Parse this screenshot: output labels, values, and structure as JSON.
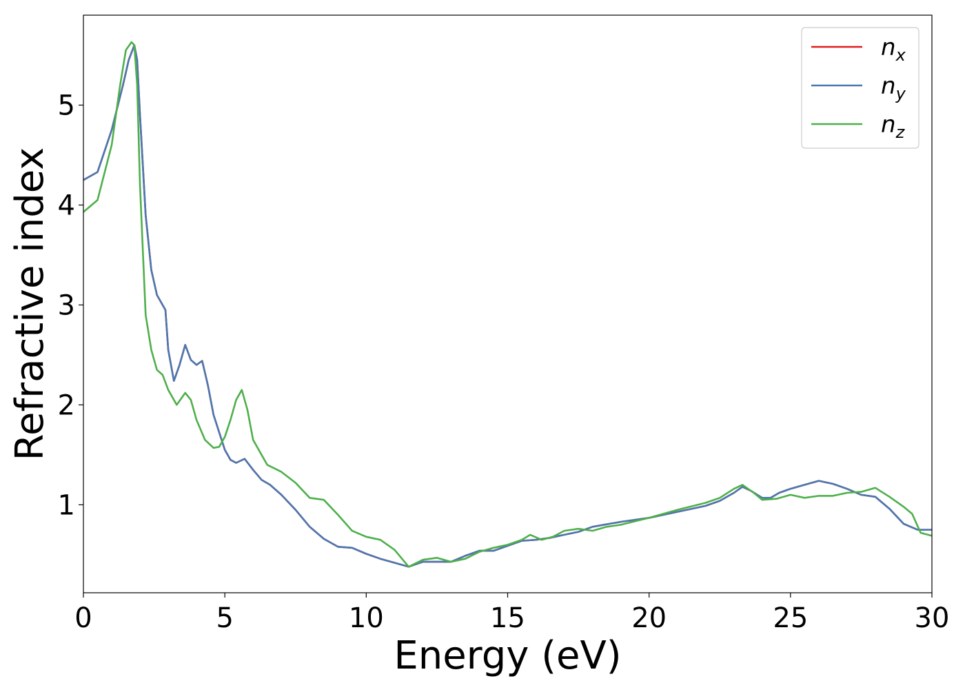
{
  "chart_data": {
    "type": "line",
    "xlabel": "Energy (eV)",
    "ylabel": "Refractive index",
    "xlim": [
      0,
      30
    ],
    "ylim": [
      0.12,
      5.9
    ],
    "xticks": [
      0,
      5,
      10,
      15,
      20,
      25,
      30
    ],
    "yticks": [
      1,
      2,
      3,
      4,
      5
    ],
    "grid": false,
    "legend_position": "top-right",
    "series": [
      {
        "name": "n_x",
        "label_base": "n",
        "label_sub": "x",
        "color": "#e31a1c",
        "x": [
          0,
          0.5,
          1.0,
          1.4,
          1.6,
          1.8,
          1.9,
          2.0,
          2.2,
          2.4,
          2.6,
          2.9,
          3.0,
          3.2,
          3.4,
          3.6,
          3.8,
          4.0,
          4.2,
          4.4,
          4.6,
          5.0,
          5.2,
          5.4,
          5.7,
          6.0,
          6.3,
          6.6,
          7.0,
          7.5,
          8.0,
          8.5,
          9.0,
          9.5,
          10.0,
          10.5,
          11.0,
          11.5,
          12.0,
          12.5,
          13.0,
          13.5,
          14.0,
          14.5,
          15.0,
          15.5,
          16.0,
          16.5,
          17.0,
          17.5,
          18.0,
          19.0,
          20.0,
          21.0,
          22.0,
          22.5,
          23.0,
          23.3,
          23.6,
          24.0,
          24.3,
          24.6,
          25.0,
          25.5,
          26.0,
          26.5,
          27.0,
          27.5,
          28.0,
          28.5,
          29.0,
          29.5,
          30.0
        ],
        "values": [
          4.25,
          4.33,
          4.75,
          5.2,
          5.45,
          5.6,
          5.45,
          4.9,
          3.9,
          3.35,
          3.1,
          2.95,
          2.55,
          2.24,
          2.4,
          2.6,
          2.45,
          2.4,
          2.44,
          2.2,
          1.9,
          1.55,
          1.45,
          1.42,
          1.46,
          1.35,
          1.25,
          1.2,
          1.1,
          0.95,
          0.78,
          0.66,
          0.58,
          0.57,
          0.51,
          0.46,
          0.42,
          0.38,
          0.43,
          0.43,
          0.43,
          0.49,
          0.54,
          0.54,
          0.59,
          0.64,
          0.65,
          0.67,
          0.7,
          0.73,
          0.78,
          0.83,
          0.87,
          0.93,
          0.99,
          1.04,
          1.12,
          1.18,
          1.14,
          1.07,
          1.07,
          1.12,
          1.16,
          1.2,
          1.24,
          1.21,
          1.16,
          1.1,
          1.08,
          0.96,
          0.81,
          0.75,
          0.75
        ]
      },
      {
        "name": "n_y",
        "label_base": "n",
        "label_sub": "y",
        "color": "#4a78b0",
        "x": [
          0,
          0.5,
          1.0,
          1.4,
          1.6,
          1.8,
          1.9,
          2.0,
          2.2,
          2.4,
          2.6,
          2.9,
          3.0,
          3.2,
          3.4,
          3.6,
          3.8,
          4.0,
          4.2,
          4.4,
          4.6,
          5.0,
          5.2,
          5.4,
          5.7,
          6.0,
          6.3,
          6.6,
          7.0,
          7.5,
          8.0,
          8.5,
          9.0,
          9.5,
          10.0,
          10.5,
          11.0,
          11.5,
          12.0,
          12.5,
          13.0,
          13.5,
          14.0,
          14.5,
          15.0,
          15.5,
          16.0,
          16.5,
          17.0,
          17.5,
          18.0,
          19.0,
          20.0,
          21.0,
          22.0,
          22.5,
          23.0,
          23.3,
          23.6,
          24.0,
          24.3,
          24.6,
          25.0,
          25.5,
          26.0,
          26.5,
          27.0,
          27.5,
          28.0,
          28.5,
          29.0,
          29.5,
          30.0
        ],
        "values": [
          4.25,
          4.33,
          4.75,
          5.2,
          5.45,
          5.6,
          5.45,
          4.9,
          3.9,
          3.35,
          3.1,
          2.95,
          2.55,
          2.24,
          2.4,
          2.6,
          2.45,
          2.4,
          2.44,
          2.2,
          1.9,
          1.55,
          1.45,
          1.42,
          1.46,
          1.35,
          1.25,
          1.2,
          1.1,
          0.95,
          0.78,
          0.66,
          0.58,
          0.57,
          0.51,
          0.46,
          0.42,
          0.38,
          0.43,
          0.43,
          0.43,
          0.49,
          0.54,
          0.54,
          0.59,
          0.64,
          0.65,
          0.67,
          0.7,
          0.73,
          0.78,
          0.83,
          0.87,
          0.93,
          0.99,
          1.04,
          1.12,
          1.18,
          1.14,
          1.07,
          1.07,
          1.12,
          1.16,
          1.2,
          1.24,
          1.21,
          1.16,
          1.1,
          1.08,
          0.96,
          0.81,
          0.75,
          0.75
        ]
      },
      {
        "name": "n_z",
        "label_base": "n",
        "label_sub": "z",
        "color": "#4daf4a",
        "x": [
          0,
          0.5,
          1.0,
          1.3,
          1.5,
          1.7,
          1.8,
          1.9,
          2.0,
          2.2,
          2.4,
          2.6,
          2.8,
          3.0,
          3.3,
          3.6,
          3.8,
          4.0,
          4.3,
          4.6,
          4.8,
          5.0,
          5.2,
          5.4,
          5.6,
          5.8,
          6.0,
          6.5,
          7.0,
          7.5,
          8.0,
          8.5,
          9.0,
          9.5,
          10.0,
          10.5,
          11.0,
          11.5,
          12.0,
          12.5,
          13.0,
          13.5,
          14.0,
          14.5,
          15.0,
          15.5,
          15.8,
          16.2,
          16.6,
          17.0,
          17.5,
          18.0,
          18.5,
          19.0,
          20.0,
          21.0,
          22.0,
          22.5,
          23.0,
          23.3,
          23.7,
          24.0,
          24.5,
          25.0,
          25.5,
          26.0,
          26.5,
          27.0,
          27.5,
          28.0,
          28.5,
          29.0,
          29.3,
          29.6,
          30.0
        ],
        "values": [
          3.93,
          4.05,
          4.6,
          5.2,
          5.55,
          5.63,
          5.6,
          5.2,
          4.2,
          2.9,
          2.55,
          2.35,
          2.3,
          2.15,
          2.0,
          2.12,
          2.05,
          1.85,
          1.65,
          1.57,
          1.58,
          1.68,
          1.85,
          2.05,
          2.15,
          1.95,
          1.65,
          1.4,
          1.33,
          1.22,
          1.07,
          1.05,
          0.9,
          0.74,
          0.68,
          0.65,
          0.55,
          0.38,
          0.45,
          0.47,
          0.43,
          0.46,
          0.53,
          0.57,
          0.6,
          0.65,
          0.7,
          0.65,
          0.68,
          0.74,
          0.76,
          0.74,
          0.78,
          0.8,
          0.87,
          0.95,
          1.02,
          1.07,
          1.16,
          1.2,
          1.12,
          1.05,
          1.06,
          1.1,
          1.07,
          1.09,
          1.09,
          1.12,
          1.13,
          1.17,
          1.08,
          0.98,
          0.91,
          0.72,
          0.69
        ]
      }
    ]
  }
}
